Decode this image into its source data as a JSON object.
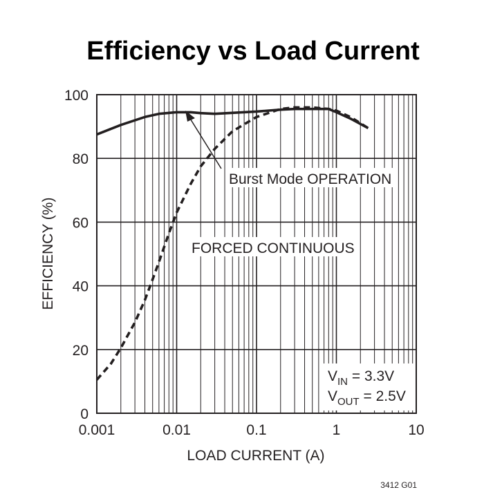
{
  "chart_data": {
    "type": "line",
    "title": "Efficiency vs Load Current",
    "xlabel": "LOAD CURRENT (A)",
    "ylabel": "EFFICIENCY (%)",
    "xscale": "log",
    "xlim": [
      0.001,
      10
    ],
    "ylim": [
      0,
      100
    ],
    "x_ticks": [
      "0.001",
      "0.01",
      "0.1",
      "1",
      "10"
    ],
    "y_ticks": [
      "0",
      "20",
      "40",
      "60",
      "80",
      "100"
    ],
    "grid": true,
    "series": [
      {
        "name": "Burst Mode OPERATION",
        "style": "solid",
        "x": [
          0.001,
          0.002,
          0.004,
          0.006,
          0.01,
          0.015,
          0.02,
          0.03,
          0.05,
          0.1,
          0.2,
          0.3,
          0.5,
          0.8,
          1.0,
          1.5,
          2.5
        ],
        "y": [
          87.5,
          90.5,
          93.0,
          94.0,
          94.5,
          94.5,
          94.2,
          94.0,
          94.3,
          94.7,
          95.3,
          95.5,
          95.5,
          95.5,
          94.5,
          92.5,
          89.5
        ]
      },
      {
        "name": "FORCED CONTINUOUS",
        "style": "dashed",
        "x": [
          0.001,
          0.0015,
          0.002,
          0.003,
          0.004,
          0.005,
          0.006,
          0.008,
          0.01,
          0.015,
          0.02,
          0.03,
          0.05,
          0.1,
          0.2,
          0.3,
          0.5,
          0.8,
          1.0,
          1.5,
          2.5
        ],
        "y": [
          10.5,
          15.5,
          20.5,
          28.5,
          35.5,
          42.0,
          47.5,
          56.5,
          63.0,
          72.0,
          77.5,
          83.0,
          88.5,
          93.0,
          95.5,
          96.0,
          96.0,
          95.5,
          95.0,
          93.0,
          89.5
        ]
      }
    ],
    "annotations": {
      "burst_label": "Burst Mode OPERATION",
      "forced_label": "FORCED CONTINUOUS",
      "vin_main": "V",
      "vin_sub": "IN",
      "vin_value": " = 3.3V",
      "vout_main": "V",
      "vout_sub": "OUT",
      "vout_value": " = 2.5V"
    },
    "figure_id": "3412 G01",
    "colors": {
      "ink": "#231f20",
      "background": "#ffffff"
    }
  }
}
